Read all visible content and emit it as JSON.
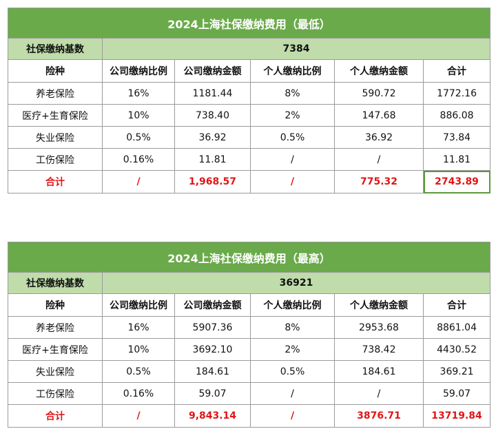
{
  "tables": [
    {
      "title": "2024上海社保缴纳费用（最低）",
      "base_label": "社保缴纳基数",
      "base_value": "7384",
      "headers": [
        "险种",
        "公司缴纳比例",
        "公司缴纳金额",
        "个人缴纳比例",
        "个人缴纳金额",
        "合计"
      ],
      "rows": [
        [
          "养老保险",
          "16%",
          "1181.44",
          "8%",
          "590.72",
          "1772.16"
        ],
        [
          "医疗+生育保险",
          "10%",
          "738.40",
          "2%",
          "147.68",
          "886.08"
        ],
        [
          "失业保险",
          "0.5%",
          "36.92",
          "0.5%",
          "36.92",
          "73.84"
        ],
        [
          "工伤保险",
          "0.16%",
          "11.81",
          "/",
          "/",
          "11.81"
        ]
      ],
      "total": [
        "合计",
        "/",
        "1,968.57",
        "/",
        "775.32",
        "2743.89"
      ]
    },
    {
      "title": "2024上海社保缴纳费用（最高）",
      "base_label": "社保缴纳基数",
      "base_value": "36921",
      "headers": [
        "险种",
        "公司缴纳比例",
        "公司缴纳金额",
        "个人缴纳比例",
        "个人缴纳金额",
        "合计"
      ],
      "rows": [
        [
          "养老保险",
          "16%",
          "5907.36",
          "8%",
          "2953.68",
          "8861.04"
        ],
        [
          "医疗+生育保险",
          "10%",
          "3692.10",
          "2%",
          "738.42",
          "4430.52"
        ],
        [
          "失业保险",
          "0.5%",
          "184.61",
          "0.5%",
          "184.61",
          "369.21"
        ],
        [
          "工伤保险",
          "0.16%",
          "59.07",
          "/",
          "/",
          "59.07"
        ]
      ],
      "total": [
        "合计",
        "/",
        "9,843.14",
        "/",
        "3876.71",
        "13719.84"
      ]
    }
  ],
  "colors": {
    "title_bg": "#6aaa4b",
    "base_bg": "#bfdcaa",
    "total_text": "#e01616",
    "border": "#9a9a9a"
  }
}
